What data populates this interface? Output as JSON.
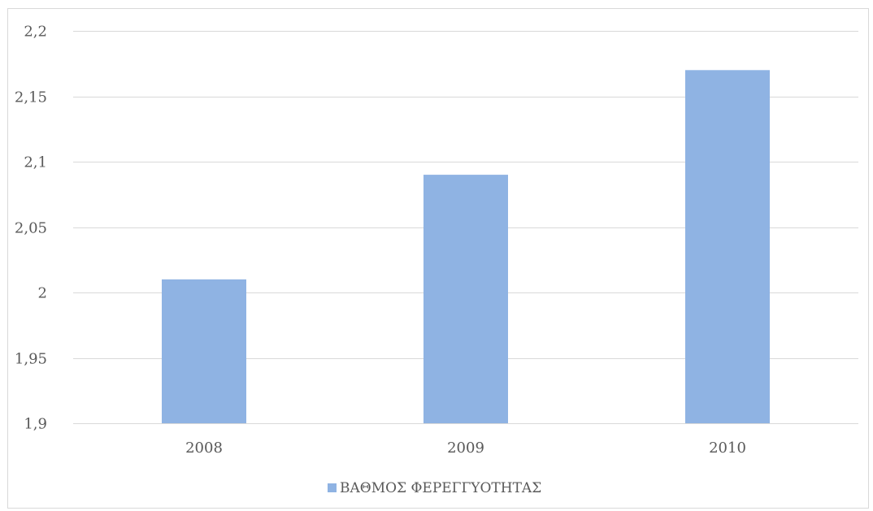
{
  "chart_data": {
    "type": "bar",
    "categories": [
      "2008",
      "2009",
      "2010"
    ],
    "series": [
      {
        "name": "ΒΑΘΜΟΣ ΦΕΡΕΓΓΥΟΤΗΤΑΣ",
        "values": [
          2.01,
          2.09,
          2.17
        ],
        "color": "#8fb3e3"
      }
    ],
    "ylim": [
      1.9,
      2.2
    ],
    "yticks": [
      1.9,
      1.95,
      2.0,
      2.05,
      2.1,
      2.15,
      2.2
    ],
    "ytick_labels": [
      "1,9",
      "1,95",
      "2",
      "2,05",
      "2,1",
      "2,15",
      "2,2"
    ],
    "grid": true,
    "gridline_color": "#d9d9d9",
    "legend_position": "bottom",
    "title": "",
    "xlabel": "",
    "ylabel": ""
  }
}
